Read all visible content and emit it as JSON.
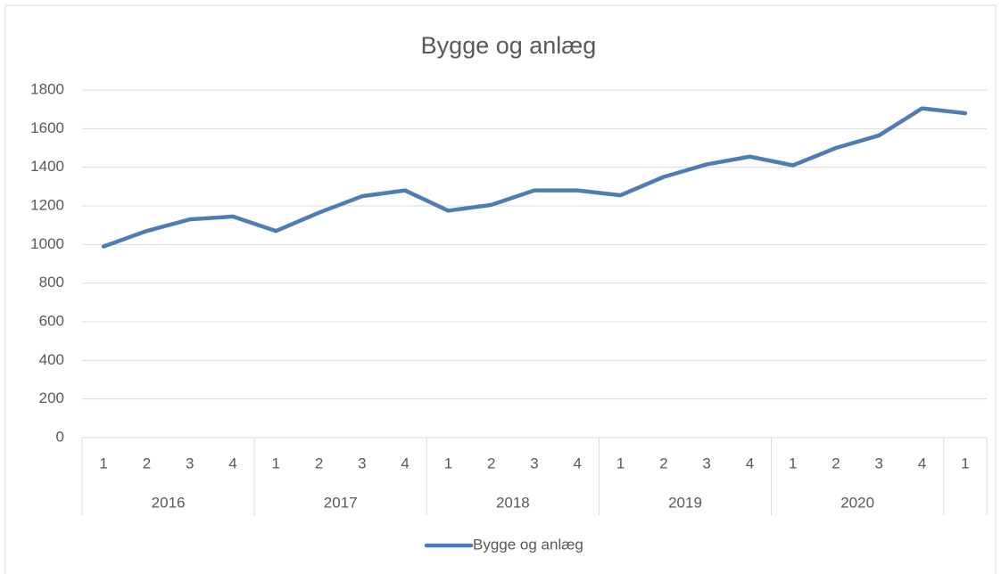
{
  "chart_data": {
    "type": "line",
    "title": "Bygge og anlæg",
    "categories": [
      "1",
      "2",
      "3",
      "4",
      "1",
      "2",
      "3",
      "4",
      "1",
      "2",
      "3",
      "4",
      "1",
      "2",
      "3",
      "4",
      "1",
      "2",
      "3",
      "4",
      "1"
    ],
    "category_groups": [
      "2016",
      "2016",
      "2016",
      "2016",
      "2017",
      "2017",
      "2017",
      "2017",
      "2018",
      "2018",
      "2018",
      "2018",
      "2019",
      "2019",
      "2019",
      "2019",
      "2020",
      "2020",
      "2020",
      "2020",
      null
    ],
    "series": [
      {
        "name": "Bygge og anlæg",
        "color": "#4e7db3",
        "values": [
          990,
          1070,
          1130,
          1145,
          1070,
          1165,
          1250,
          1280,
          1175,
          1205,
          1280,
          1280,
          1255,
          1350,
          1415,
          1455,
          1410,
          1500,
          1565,
          1705,
          1680
        ]
      }
    ],
    "ylim": [
      0,
      1800
    ],
    "yticks": [
      0,
      200,
      400,
      600,
      800,
      1000,
      1200,
      1400,
      1600,
      1800
    ],
    "grid": true,
    "legend": "bottom"
  }
}
